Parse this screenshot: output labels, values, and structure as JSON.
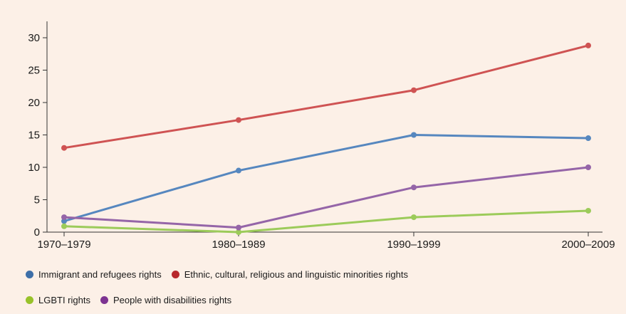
{
  "chart_data": {
    "type": "line",
    "categories": [
      "1970–1979",
      "1980–1989",
      "1990–1999",
      "2000–2009"
    ],
    "ylim": [
      0,
      32
    ],
    "yticks": [
      0,
      5,
      10,
      15,
      20,
      25,
      30
    ],
    "title": "",
    "xlabel": "",
    "ylabel": "",
    "series": [
      {
        "name": "Immigrant and refugees rights",
        "color": "#3e6fa8",
        "line_color": "#5687bf",
        "values": [
          1.7,
          9.5,
          15.0,
          14.5
        ]
      },
      {
        "name": "Ethnic, cultural, religious and linguistic minorities rights",
        "color": "#b8282c",
        "line_color": "#cf5353",
        "values": [
          13.0,
          17.3,
          21.9,
          28.8
        ]
      },
      {
        "name": "LGBTI rights",
        "color": "#98c22a",
        "line_color": "#9ccb5a",
        "values": [
          0.9,
          0.0,
          2.3,
          3.3
        ]
      },
      {
        "name": "People with disabilities rights",
        "color": "#7d3391",
        "line_color": "#9565a8",
        "values": [
          2.3,
          0.7,
          6.9,
          10.0
        ]
      }
    ]
  }
}
